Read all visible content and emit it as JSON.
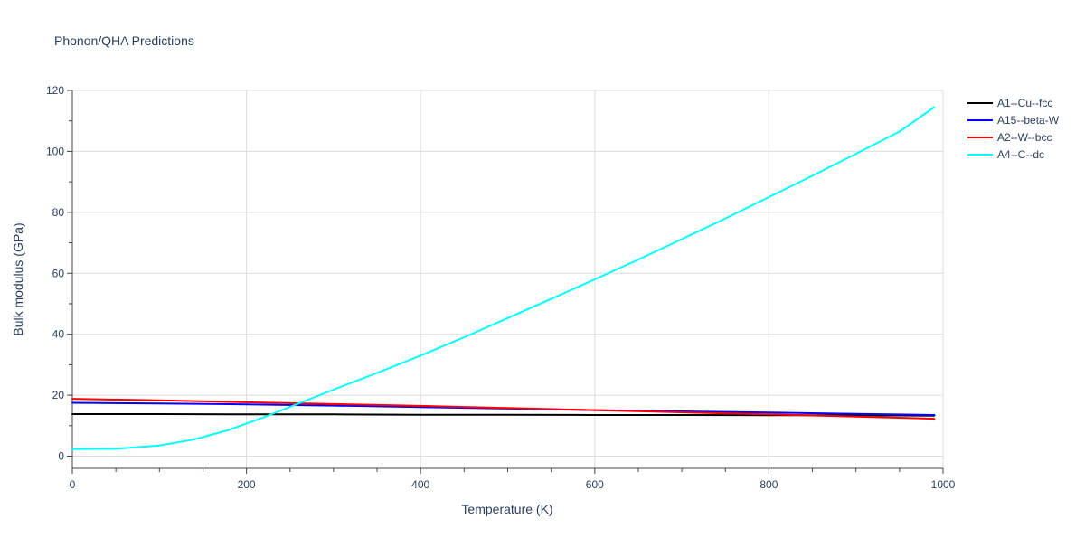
{
  "chart_data": {
    "type": "line",
    "title": "Phonon/QHA Predictions",
    "xlabel": "Temperature (K)",
    "ylabel": "Bulk modulus (GPa)",
    "xlim": [
      0,
      1000
    ],
    "ylim": [
      -4,
      120
    ],
    "x_ticks": [
      0,
      200,
      400,
      600,
      800,
      1000
    ],
    "x_tick_labels": [
      "0",
      "200",
      "400",
      "600",
      "800",
      "1000"
    ],
    "y_ticks": [
      0,
      20,
      40,
      60,
      80,
      100,
      120
    ],
    "y_tick_labels": [
      "0",
      "20",
      "40",
      "60",
      "80",
      "100",
      "120"
    ],
    "grid": true,
    "legend_position": "top-right",
    "series": [
      {
        "name": "A1--Cu--fcc",
        "color": "#000000",
        "x": [
          0,
          100,
          200,
          300,
          400,
          500,
          600,
          700,
          800,
          900,
          990
        ],
        "y": [
          13.8,
          13.8,
          13.7,
          13.7,
          13.6,
          13.6,
          13.5,
          13.5,
          13.4,
          13.4,
          13.3
        ]
      },
      {
        "name": "A15--beta-W",
        "color": "#0000ff",
        "x": [
          0,
          100,
          200,
          300,
          400,
          500,
          600,
          700,
          800,
          900,
          990
        ],
        "y": [
          17.5,
          17.3,
          17.0,
          16.6,
          16.1,
          15.6,
          15.1,
          14.7,
          14.3,
          13.9,
          13.5
        ]
      },
      {
        "name": "A2--W--bcc",
        "color": "#ff0000",
        "x": [
          0,
          100,
          200,
          300,
          400,
          500,
          600,
          700,
          800,
          900,
          990
        ],
        "y": [
          18.8,
          18.3,
          17.7,
          17.1,
          16.5,
          15.8,
          15.1,
          14.4,
          13.7,
          13.0,
          12.3
        ]
      },
      {
        "name": "A4--C--dc",
        "color": "#00ffff",
        "x": [
          0,
          50,
          100,
          140,
          180,
          220,
          260,
          300,
          350,
          400,
          450,
          500,
          550,
          600,
          650,
          700,
          750,
          800,
          850,
          900,
          950,
          990
        ],
        "y": [
          2.3,
          2.4,
          3.5,
          5.5,
          8.6,
          12.8,
          17.3,
          21.8,
          27.3,
          33.0,
          39.0,
          45.3,
          51.6,
          58.0,
          64.5,
          71.2,
          78.0,
          85.0,
          92.0,
          99.2,
          106.5,
          114.5
        ]
      }
    ]
  }
}
